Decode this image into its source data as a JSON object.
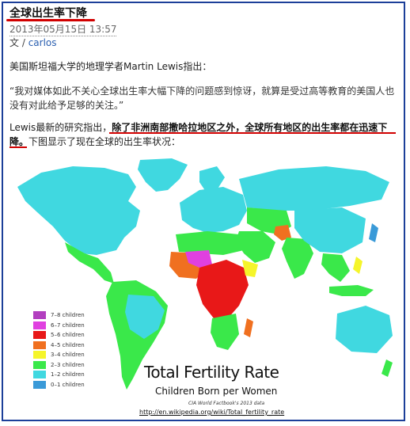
{
  "article": {
    "title": "全球出生率下降",
    "date": "2013年05月15日 13:57",
    "author_prefix": "文 / ",
    "author": "carlos",
    "intro": "美国斯坦福大学的地理学者Martin Lewis指出：",
    "quote": "“我对媒体如此不关心全球出生率大幅下降的问题感到惊讶，就算是受过高等教育的美国人也没有对此给予足够的关注。”",
    "p2_pre": "Lewis最新的研究指出，",
    "p2_bold": "除了非洲南部撒哈拉地区之外，全球所有地区的出生率都在迅速下降。",
    "p2_post": "下图显示了现在全球的出生率状况："
  },
  "map": {
    "title": "Total Fertility Rate",
    "subtitle": "Children Born per Women",
    "source": "CIA World Factbook's 2013 data",
    "url": "http://en.wikipedia.org/wiki/Total_fertility_rate",
    "legend": [
      {
        "label": "7–8 children",
        "color": "#b23fbf"
      },
      {
        "label": "6–7 children",
        "color": "#e040e0"
      },
      {
        "label": "5–6 children",
        "color": "#e81818"
      },
      {
        "label": "4–5 children",
        "color": "#f07020"
      },
      {
        "label": "3–4 children",
        "color": "#f5f52a"
      },
      {
        "label": "2–3 children",
        "color": "#3ae84a"
      },
      {
        "label": "1–2 children",
        "color": "#40d8e0"
      },
      {
        "label": "0–1 children",
        "color": "#3a9ad8"
      }
    ]
  }
}
